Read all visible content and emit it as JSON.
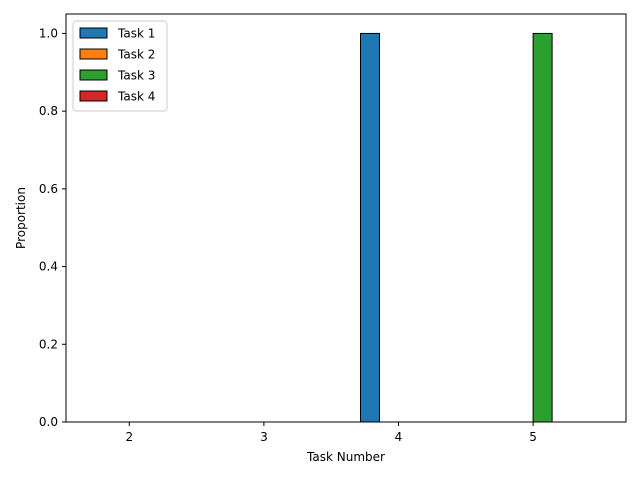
{
  "chart_data": {
    "type": "bar",
    "categories": [
      "2",
      "3",
      "4",
      "5"
    ],
    "series": [
      {
        "name": "Task 1",
        "color": "#1f77b4",
        "values": [
          0,
          0,
          1.0,
          0
        ]
      },
      {
        "name": "Task 2",
        "color": "#ff7f0e",
        "values": [
          0,
          0,
          0,
          0
        ]
      },
      {
        "name": "Task 3",
        "color": "#2ca02c",
        "values": [
          0,
          0,
          0,
          1.0
        ]
      },
      {
        "name": "Task 4",
        "color": "#d62728",
        "values": [
          0,
          0,
          0,
          0
        ]
      }
    ],
    "xlabel": "Task Number",
    "ylabel": "Proportion",
    "ylim": [
      0,
      1.05
    ],
    "yticks": [
      "0.0",
      "0.2",
      "0.4",
      "0.6",
      "0.8",
      "1.0"
    ],
    "grid": false,
    "legend_position": "top-left"
  }
}
